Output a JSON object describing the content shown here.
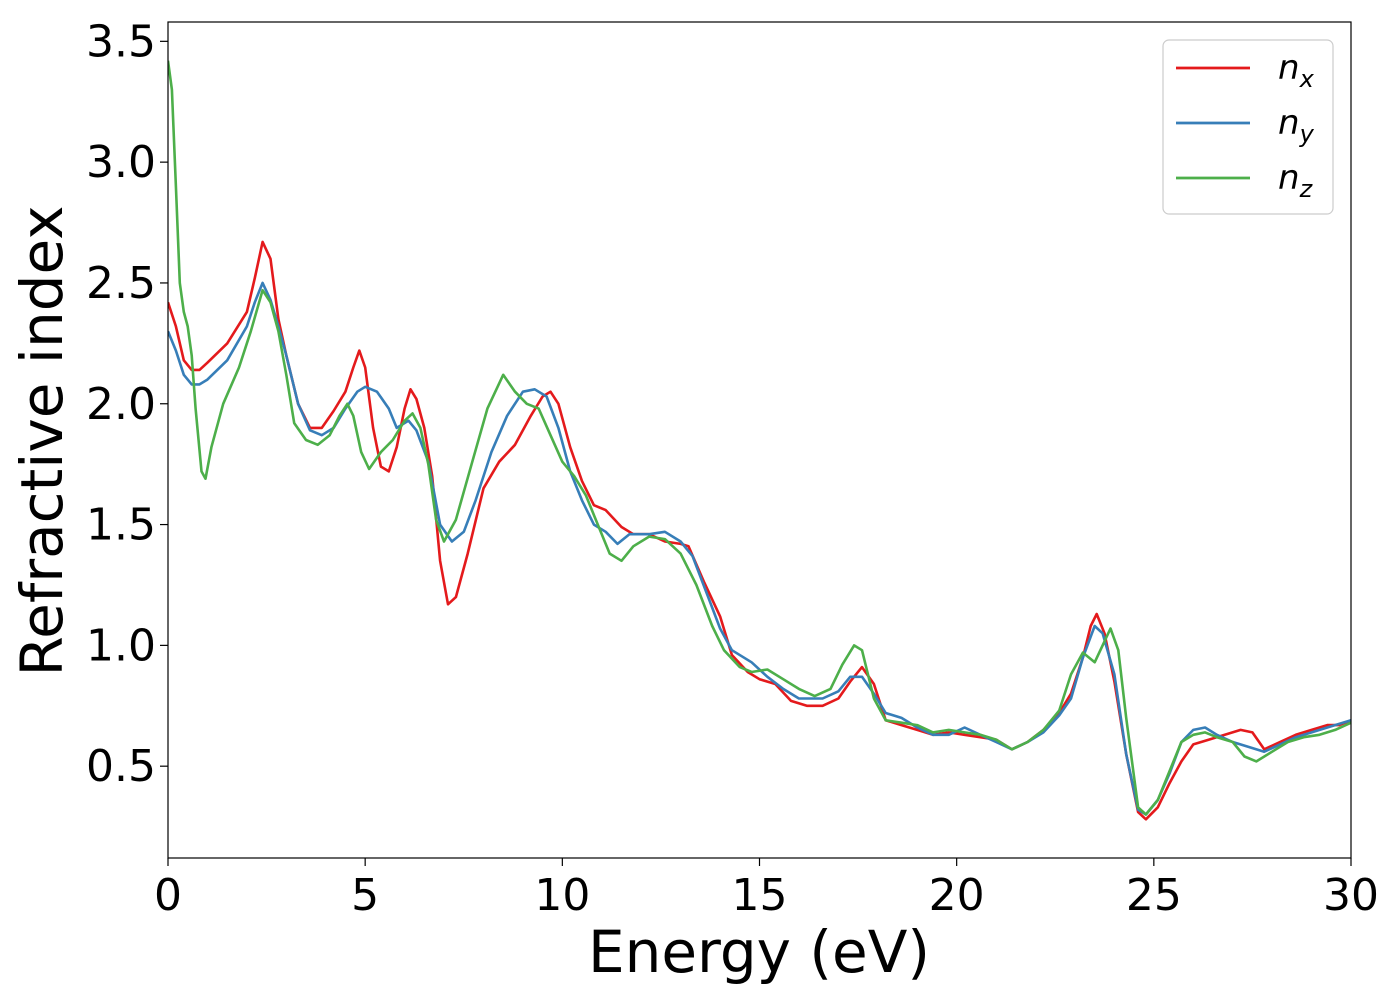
{
  "chart_data": {
    "type": "line",
    "xlabel": "Energy (eV)",
    "ylabel": "Refractive index",
    "xlim": [
      0,
      30
    ],
    "ylim": [
      0.12,
      3.58
    ],
    "xticks": [
      "0",
      "5",
      "10",
      "15",
      "20",
      "25",
      "30"
    ],
    "yticks": [
      "0.5",
      "1.0",
      "1.5",
      "2.0",
      "2.5",
      "3.0",
      "3.5"
    ],
    "grid": false,
    "legend_position": "top-right",
    "series": [
      {
        "name": "n",
        "subscript": "x",
        "color": "#e41a1c",
        "points": [
          [
            0,
            2.42
          ],
          [
            0.2,
            2.32
          ],
          [
            0.4,
            2.18
          ],
          [
            0.6,
            2.14
          ],
          [
            0.8,
            2.14
          ],
          [
            1,
            2.17
          ],
          [
            1.5,
            2.25
          ],
          [
            2,
            2.38
          ],
          [
            2.2,
            2.52
          ],
          [
            2.4,
            2.67
          ],
          [
            2.6,
            2.6
          ],
          [
            2.8,
            2.35
          ],
          [
            3,
            2.2
          ],
          [
            3.3,
            2.0
          ],
          [
            3.6,
            1.9
          ],
          [
            3.9,
            1.9
          ],
          [
            4.2,
            1.97
          ],
          [
            4.5,
            2.05
          ],
          [
            4.7,
            2.15
          ],
          [
            4.85,
            2.22
          ],
          [
            5.0,
            2.15
          ],
          [
            5.2,
            1.9
          ],
          [
            5.4,
            1.74
          ],
          [
            5.6,
            1.72
          ],
          [
            5.8,
            1.82
          ],
          [
            6.0,
            1.98
          ],
          [
            6.15,
            2.06
          ],
          [
            6.3,
            2.02
          ],
          [
            6.5,
            1.9
          ],
          [
            6.7,
            1.7
          ],
          [
            6.9,
            1.35
          ],
          [
            7.1,
            1.17
          ],
          [
            7.3,
            1.2
          ],
          [
            7.6,
            1.38
          ],
          [
            8.0,
            1.65
          ],
          [
            8.4,
            1.76
          ],
          [
            8.8,
            1.83
          ],
          [
            9.2,
            1.95
          ],
          [
            9.5,
            2.03
          ],
          [
            9.7,
            2.05
          ],
          [
            9.9,
            2.0
          ],
          [
            10.2,
            1.82
          ],
          [
            10.5,
            1.68
          ],
          [
            10.8,
            1.58
          ],
          [
            11.1,
            1.56
          ],
          [
            11.5,
            1.49
          ],
          [
            11.8,
            1.46
          ],
          [
            12.2,
            1.46
          ],
          [
            12.6,
            1.43
          ],
          [
            13.0,
            1.42
          ],
          [
            13.2,
            1.41
          ],
          [
            13.6,
            1.26
          ],
          [
            14.0,
            1.12
          ],
          [
            14.3,
            0.96
          ],
          [
            14.7,
            0.89
          ],
          [
            15.0,
            0.86
          ],
          [
            15.4,
            0.84
          ],
          [
            15.8,
            0.77
          ],
          [
            16.2,
            0.75
          ],
          [
            16.6,
            0.75
          ],
          [
            17.0,
            0.78
          ],
          [
            17.3,
            0.85
          ],
          [
            17.6,
            0.91
          ],
          [
            17.9,
            0.84
          ],
          [
            18.2,
            0.69
          ],
          [
            18.6,
            0.67
          ],
          [
            19.0,
            0.65
          ],
          [
            19.4,
            0.63
          ],
          [
            19.8,
            0.64
          ],
          [
            20.2,
            0.63
          ],
          [
            20.6,
            0.62
          ],
          [
            21.0,
            0.61
          ],
          [
            21.4,
            0.57
          ],
          [
            21.8,
            0.6
          ],
          [
            22.2,
            0.65
          ],
          [
            22.6,
            0.72
          ],
          [
            22.9,
            0.8
          ],
          [
            23.2,
            0.95
          ],
          [
            23.4,
            1.08
          ],
          [
            23.55,
            1.13
          ],
          [
            23.75,
            1.05
          ],
          [
            24.0,
            0.85
          ],
          [
            24.3,
            0.55
          ],
          [
            24.6,
            0.31
          ],
          [
            24.8,
            0.28
          ],
          [
            25.1,
            0.33
          ],
          [
            25.4,
            0.43
          ],
          [
            25.7,
            0.52
          ],
          [
            26.0,
            0.59
          ],
          [
            26.4,
            0.61
          ],
          [
            26.8,
            0.63
          ],
          [
            27.2,
            0.65
          ],
          [
            27.5,
            0.64
          ],
          [
            27.8,
            0.57
          ],
          [
            28.2,
            0.6
          ],
          [
            28.6,
            0.63
          ],
          [
            29.0,
            0.65
          ],
          [
            29.4,
            0.67
          ],
          [
            29.7,
            0.67
          ],
          [
            30.0,
            0.69
          ]
        ]
      },
      {
        "name": "n",
        "subscript": "y",
        "color": "#377eb8",
        "points": [
          [
            0,
            2.3
          ],
          [
            0.2,
            2.22
          ],
          [
            0.4,
            2.12
          ],
          [
            0.6,
            2.08
          ],
          [
            0.8,
            2.08
          ],
          [
            1,
            2.1
          ],
          [
            1.5,
            2.18
          ],
          [
            2,
            2.32
          ],
          [
            2.2,
            2.42
          ],
          [
            2.4,
            2.5
          ],
          [
            2.6,
            2.43
          ],
          [
            2.8,
            2.32
          ],
          [
            3,
            2.2
          ],
          [
            3.3,
            2.0
          ],
          [
            3.6,
            1.89
          ],
          [
            3.9,
            1.87
          ],
          [
            4.2,
            1.9
          ],
          [
            4.5,
            1.98
          ],
          [
            4.8,
            2.05
          ],
          [
            5.0,
            2.07
          ],
          [
            5.3,
            2.05
          ],
          [
            5.6,
            1.98
          ],
          [
            5.8,
            1.9
          ],
          [
            6.1,
            1.93
          ],
          [
            6.3,
            1.89
          ],
          [
            6.6,
            1.76
          ],
          [
            6.9,
            1.5
          ],
          [
            7.2,
            1.43
          ],
          [
            7.5,
            1.47
          ],
          [
            7.8,
            1.6
          ],
          [
            8.2,
            1.8
          ],
          [
            8.6,
            1.95
          ],
          [
            9.0,
            2.05
          ],
          [
            9.3,
            2.06
          ],
          [
            9.6,
            2.03
          ],
          [
            9.9,
            1.9
          ],
          [
            10.2,
            1.72
          ],
          [
            10.5,
            1.6
          ],
          [
            10.8,
            1.5
          ],
          [
            11.1,
            1.47
          ],
          [
            11.4,
            1.42
          ],
          [
            11.7,
            1.46
          ],
          [
            12.2,
            1.46
          ],
          [
            12.6,
            1.47
          ],
          [
            13.0,
            1.43
          ],
          [
            13.3,
            1.37
          ],
          [
            13.7,
            1.2
          ],
          [
            14.0,
            1.07
          ],
          [
            14.3,
            0.98
          ],
          [
            14.8,
            0.93
          ],
          [
            15.2,
            0.87
          ],
          [
            15.6,
            0.82
          ],
          [
            16.0,
            0.78
          ],
          [
            16.6,
            0.78
          ],
          [
            17.0,
            0.81
          ],
          [
            17.3,
            0.87
          ],
          [
            17.6,
            0.87
          ],
          [
            17.9,
            0.8
          ],
          [
            18.2,
            0.72
          ],
          [
            18.6,
            0.7
          ],
          [
            19.0,
            0.66
          ],
          [
            19.4,
            0.63
          ],
          [
            19.8,
            0.63
          ],
          [
            20.2,
            0.66
          ],
          [
            20.6,
            0.63
          ],
          [
            21.0,
            0.6
          ],
          [
            21.4,
            0.57
          ],
          [
            21.8,
            0.6
          ],
          [
            22.2,
            0.64
          ],
          [
            22.6,
            0.71
          ],
          [
            22.9,
            0.78
          ],
          [
            23.2,
            0.95
          ],
          [
            23.5,
            1.08
          ],
          [
            23.7,
            1.05
          ],
          [
            24.0,
            0.88
          ],
          [
            24.3,
            0.55
          ],
          [
            24.6,
            0.32
          ],
          [
            24.8,
            0.3
          ],
          [
            25.1,
            0.36
          ],
          [
            25.4,
            0.47
          ],
          [
            25.7,
            0.6
          ],
          [
            26.0,
            0.65
          ],
          [
            26.3,
            0.66
          ],
          [
            26.6,
            0.63
          ],
          [
            27.0,
            0.6
          ],
          [
            27.4,
            0.58
          ],
          [
            27.8,
            0.56
          ],
          [
            28.2,
            0.59
          ],
          [
            28.6,
            0.62
          ],
          [
            29.0,
            0.64
          ],
          [
            29.4,
            0.66
          ],
          [
            30.0,
            0.69
          ]
        ]
      },
      {
        "name": "n",
        "subscript": "z",
        "color": "#4daf4a",
        "points": [
          [
            0,
            3.42
          ],
          [
            0.1,
            3.3
          ],
          [
            0.2,
            2.9
          ],
          [
            0.3,
            2.5
          ],
          [
            0.4,
            2.38
          ],
          [
            0.5,
            2.32
          ],
          [
            0.6,
            2.2
          ],
          [
            0.7,
            1.98
          ],
          [
            0.85,
            1.72
          ],
          [
            0.95,
            1.69
          ],
          [
            1.1,
            1.82
          ],
          [
            1.4,
            2.0
          ],
          [
            1.8,
            2.15
          ],
          [
            2.1,
            2.3
          ],
          [
            2.4,
            2.47
          ],
          [
            2.6,
            2.42
          ],
          [
            2.8,
            2.3
          ],
          [
            3.0,
            2.12
          ],
          [
            3.2,
            1.92
          ],
          [
            3.5,
            1.85
          ],
          [
            3.8,
            1.83
          ],
          [
            4.1,
            1.87
          ],
          [
            4.35,
            1.95
          ],
          [
            4.55,
            2.0
          ],
          [
            4.7,
            1.95
          ],
          [
            4.9,
            1.8
          ],
          [
            5.1,
            1.73
          ],
          [
            5.4,
            1.8
          ],
          [
            5.7,
            1.85
          ],
          [
            6.0,
            1.93
          ],
          [
            6.2,
            1.96
          ],
          [
            6.4,
            1.9
          ],
          [
            6.6,
            1.75
          ],
          [
            6.8,
            1.52
          ],
          [
            7.0,
            1.43
          ],
          [
            7.3,
            1.52
          ],
          [
            7.7,
            1.75
          ],
          [
            8.1,
            1.98
          ],
          [
            8.5,
            2.12
          ],
          [
            8.8,
            2.05
          ],
          [
            9.1,
            2.0
          ],
          [
            9.4,
            1.98
          ],
          [
            9.7,
            1.87
          ],
          [
            10.0,
            1.76
          ],
          [
            10.3,
            1.7
          ],
          [
            10.6,
            1.62
          ],
          [
            10.9,
            1.5
          ],
          [
            11.2,
            1.38
          ],
          [
            11.5,
            1.35
          ],
          [
            11.8,
            1.41
          ],
          [
            12.2,
            1.45
          ],
          [
            12.6,
            1.44
          ],
          [
            13.0,
            1.38
          ],
          [
            13.4,
            1.25
          ],
          [
            13.8,
            1.08
          ],
          [
            14.1,
            0.98
          ],
          [
            14.5,
            0.91
          ],
          [
            14.8,
            0.89
          ],
          [
            15.2,
            0.9
          ],
          [
            15.6,
            0.86
          ],
          [
            16.0,
            0.82
          ],
          [
            16.4,
            0.79
          ],
          [
            16.8,
            0.82
          ],
          [
            17.1,
            0.92
          ],
          [
            17.4,
            1.0
          ],
          [
            17.6,
            0.98
          ],
          [
            17.9,
            0.78
          ],
          [
            18.2,
            0.69
          ],
          [
            18.6,
            0.68
          ],
          [
            19.0,
            0.67
          ],
          [
            19.4,
            0.64
          ],
          [
            19.8,
            0.65
          ],
          [
            20.2,
            0.64
          ],
          [
            20.6,
            0.63
          ],
          [
            21.0,
            0.61
          ],
          [
            21.4,
            0.57
          ],
          [
            21.8,
            0.6
          ],
          [
            22.2,
            0.65
          ],
          [
            22.6,
            0.73
          ],
          [
            22.9,
            0.88
          ],
          [
            23.2,
            0.97
          ],
          [
            23.5,
            0.93
          ],
          [
            23.7,
            1.0
          ],
          [
            23.9,
            1.07
          ],
          [
            24.1,
            0.98
          ],
          [
            24.3,
            0.7
          ],
          [
            24.6,
            0.33
          ],
          [
            24.8,
            0.3
          ],
          [
            25.1,
            0.36
          ],
          [
            25.4,
            0.48
          ],
          [
            25.7,
            0.6
          ],
          [
            26.0,
            0.63
          ],
          [
            26.3,
            0.64
          ],
          [
            26.6,
            0.62
          ],
          [
            27.0,
            0.6
          ],
          [
            27.3,
            0.54
          ],
          [
            27.6,
            0.52
          ],
          [
            28.0,
            0.56
          ],
          [
            28.4,
            0.6
          ],
          [
            28.8,
            0.62
          ],
          [
            29.2,
            0.63
          ],
          [
            29.6,
            0.65
          ],
          [
            30.0,
            0.68
          ]
        ]
      }
    ]
  }
}
